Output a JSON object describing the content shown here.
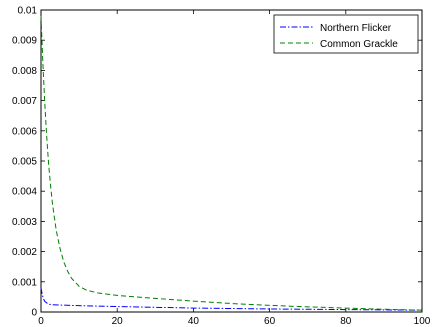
{
  "chart_data": {
    "type": "line",
    "title": "",
    "xlabel": "",
    "ylabel": "",
    "xlim": [
      0,
      100
    ],
    "ylim": [
      0,
      0.01
    ],
    "xticks": [
      0,
      20,
      40,
      60,
      80,
      100
    ],
    "yticks": [
      0,
      0.001,
      0.002,
      0.003,
      0.004,
      0.005,
      0.006,
      0.007,
      0.008,
      0.009,
      0.01
    ],
    "xtick_labels": [
      "0",
      "20",
      "40",
      "60",
      "80",
      "100"
    ],
    "ytick_labels": [
      "0",
      "0.001",
      "0.002",
      "0.003",
      "0.004",
      "0.005",
      "0.006",
      "0.007",
      "0.008",
      "0.009",
      "0.01"
    ],
    "grid": false,
    "legend_position": "top-right",
    "series": [
      {
        "name": "Northern Flicker",
        "color": "#0000ff",
        "dash": "dash-dot",
        "x": [
          0,
          0.3,
          0.6,
          1,
          1.5,
          2,
          3,
          5,
          10,
          20,
          40,
          60,
          80,
          100
        ],
        "y": [
          0.0008,
          0.0006,
          0.00045,
          0.00035,
          0.0003,
          0.00026,
          0.00024,
          0.00023,
          0.00021,
          0.00018,
          0.00013,
          0.0001,
          8e-05,
          6e-05
        ]
      },
      {
        "name": "Common Grackle",
        "color": "#008000",
        "dash": "dashed",
        "x": [
          0,
          0.5,
          1,
          1.5,
          2,
          2.5,
          3,
          4,
          5,
          6,
          7,
          8,
          10,
          12,
          15,
          20,
          25,
          30,
          40,
          50,
          60,
          70,
          80,
          90,
          100
        ],
        "y": [
          0.0098,
          0.0082,
          0.0069,
          0.0058,
          0.0049,
          0.0042,
          0.0036,
          0.0027,
          0.0021,
          0.00165,
          0.00135,
          0.00112,
          0.00085,
          0.00072,
          0.00063,
          0.00055,
          0.0005,
          0.00045,
          0.00036,
          0.00028,
          0.00022,
          0.00017,
          0.00013,
          9e-05,
          6e-05
        ]
      }
    ]
  }
}
